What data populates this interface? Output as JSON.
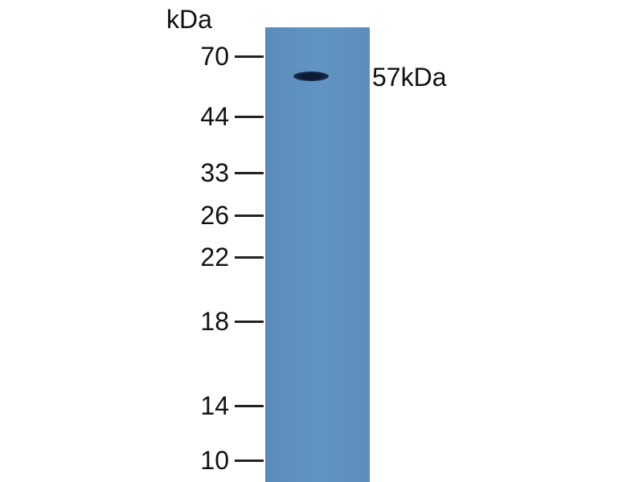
{
  "unit_label": "kDa",
  "markers": [
    {
      "label": "70",
      "kda": 70
    },
    {
      "label": "44",
      "kda": 44
    },
    {
      "label": "33",
      "kda": 33
    },
    {
      "label": "26",
      "kda": 26
    },
    {
      "label": "22",
      "kda": 22
    },
    {
      "label": "18",
      "kda": 18
    },
    {
      "label": "14",
      "kda": 14
    },
    {
      "label": "10",
      "kda": 10
    }
  ],
  "band": {
    "label": "57kDa",
    "kda": 57
  },
  "colors": {
    "lane": "#6092c1",
    "band": "#0c1a33"
  }
}
